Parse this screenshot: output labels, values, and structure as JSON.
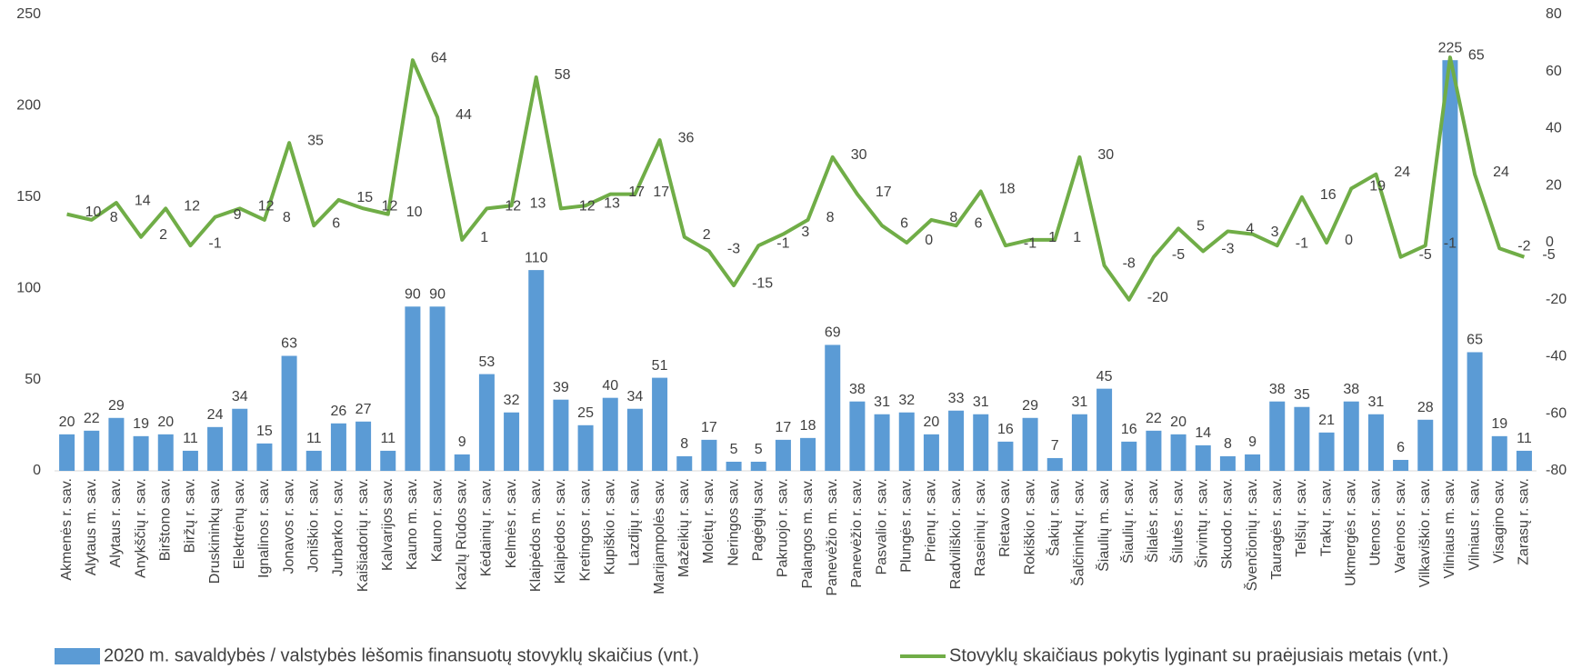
{
  "chart_data": {
    "type": "combo",
    "categories": [
      "Akmenės r. sav.",
      "Alytaus m. sav.",
      "Alytaus r. sav.",
      "Anykščių r. sav.",
      "Birštono sav.",
      "Biržų r. sav.",
      "Druskininkų sav.",
      "Elektrėnų sav.",
      "Ignalinos r. sav.",
      "Jonavos r. sav.",
      "Joniškio r. sav.",
      "Jurbarko r. sav.",
      "Kaišiadorių r. sav.",
      "Kalvarijos sav.",
      "Kauno m. sav.",
      "Kauno r. sav.",
      "Kazlų Rūdos sav.",
      "Kėdainių r. sav.",
      "Kelmės r. sav.",
      "Klaipėdos m. sav.",
      "Klaipėdos r. sav.",
      "Kretingos r. sav.",
      "Kupiškio r. sav.",
      "Lazdijų r. sav.",
      "Marijampolės sav.",
      "Mažeikių r. sav.",
      "Molėtų r. sav.",
      "Neringos sav.",
      "Pagėgių sav.",
      "Pakruojo r. sav.",
      "Palangos m. sav.",
      "Panevėžio m. sav.",
      "Panevėžio r. sav.",
      "Pasvalio r. sav.",
      "Plungės r. sav.",
      "Prienų r. sav.",
      "Radviliškio r. sav.",
      "Raseinių r. sav.",
      "Rietavo sav.",
      "Rokiškio r. sav.",
      "Šakių r. sav.",
      "Šalčininkų r. sav.",
      "Šiaulių m. sav.",
      "Šiaulių r. sav.",
      "Šilalės r. sav.",
      "Šilutės r. sav.",
      "Širvintų r. sav.",
      "Skuodo r. sav.",
      "Švenčionių r. sav.",
      "Tauragės r. sav.",
      "Telšių r. sav.",
      "Trakų r. sav.",
      "Ukmergės r. sav.",
      "Utenos r. sav.",
      "Varėnos r. sav.",
      "Vilkaviškio r. sav.",
      "Vilniaus m. sav.",
      "Vilniaus r. sav.",
      "Visagino sav.",
      "Zarasų r. sav."
    ],
    "series": [
      {
        "name": "2020 m. savaldybės / valstybės lėšomis finansuotų stovyklų skaičius (vnt.)",
        "type": "bar",
        "color": "#5b9bd5",
        "values": [
          20,
          22,
          29,
          19,
          20,
          11,
          24,
          34,
          15,
          63,
          11,
          26,
          27,
          11,
          90,
          90,
          9,
          53,
          32,
          110,
          39,
          25,
          40,
          34,
          51,
          8,
          17,
          5,
          5,
          17,
          18,
          69,
          38,
          31,
          32,
          20,
          33,
          31,
          16,
          29,
          7,
          31,
          45,
          16,
          22,
          20,
          14,
          8,
          9,
          38,
          35,
          21,
          38,
          31,
          6,
          28,
          225,
          65,
          19,
          11
        ]
      },
      {
        "name": "Stovyklų skaičiaus pokytis lyginant su praėjusiais metais (vnt.)",
        "type": "line",
        "axis": "y2",
        "color": "#70ad47",
        "values": [
          10,
          8,
          14,
          2,
          12,
          -1,
          9,
          12,
          8,
          35,
          6,
          15,
          12,
          10,
          64,
          44,
          1,
          12,
          13,
          58,
          12,
          13,
          17,
          17,
          36,
          2,
          -3,
          -15,
          -1,
          3,
          8,
          30,
          17,
          6,
          0,
          8,
          6,
          18,
          -1,
          1,
          1,
          30,
          -8,
          -20,
          -5,
          5,
          -3,
          4,
          3,
          -1,
          16,
          0,
          19,
          24,
          -5,
          -1,
          65,
          24,
          -2,
          -5
        ]
      }
    ],
    "ylim": [
      0,
      250
    ],
    "yticks": [
      0,
      50,
      100,
      150,
      200,
      250
    ],
    "y2lim": [
      -80,
      80
    ],
    "y2ticks": [
      -80,
      -60,
      -40,
      -20,
      0,
      20,
      40,
      60,
      80
    ],
    "legend": "bottom"
  }
}
